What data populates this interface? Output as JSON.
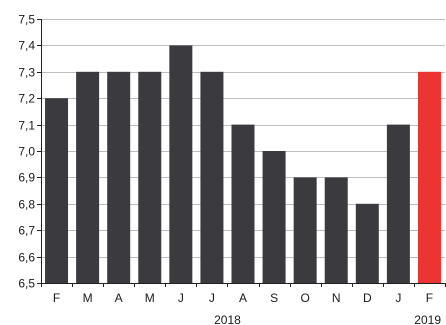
{
  "chart_data": {
    "type": "bar",
    "categories": [
      "F",
      "M",
      "A",
      "M",
      "J",
      "J",
      "A",
      "S",
      "O",
      "N",
      "D",
      "J",
      "F"
    ],
    "values": [
      7.2,
      7.3,
      7.3,
      7.3,
      7.4,
      7.3,
      7.1,
      7.0,
      6.9,
      6.9,
      6.8,
      7.1,
      7.3
    ],
    "highlight_index": 12,
    "ylim": [
      6.5,
      7.5
    ],
    "yticks": [
      6.5,
      6.6,
      6.7,
      6.8,
      6.9,
      7.0,
      7.1,
      7.2,
      7.3,
      7.4,
      7.5
    ],
    "ytick_labels": [
      "6,5",
      "6,6",
      "6,7",
      "6,8",
      "6,9",
      "7,0",
      "7,1",
      "7,2",
      "7,3",
      "7,4",
      "7,5"
    ],
    "year_labels": [
      {
        "text": "2018",
        "category_index": 5.5
      },
      {
        "text": "2019",
        "category_index": 12
      }
    ],
    "grid": true,
    "colors": {
      "bar": "#3b3a3e",
      "highlight": "#ee3333"
    },
    "title": "",
    "xlabel": "",
    "ylabel": ""
  }
}
